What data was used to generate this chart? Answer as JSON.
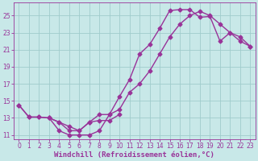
{
  "xlabel": "Windchill (Refroidissement éolien,°C)",
  "bg_color": "#c8e8e8",
  "grid_color": "#a0cccc",
  "line_color": "#993399",
  "xlim": [
    -0.5,
    23.5
  ],
  "ylim": [
    10.5,
    26.5
  ],
  "yticks": [
    11,
    13,
    15,
    17,
    19,
    21,
    23,
    25
  ],
  "xticks": [
    0,
    1,
    2,
    3,
    4,
    5,
    6,
    7,
    8,
    9,
    10,
    11,
    12,
    13,
    14,
    15,
    16,
    17,
    18,
    19,
    20,
    21,
    22,
    23
  ],
  "line1_x": [
    0,
    1,
    2,
    3,
    4,
    5,
    6,
    7,
    8,
    9,
    10,
    11,
    12,
    13,
    14,
    15,
    16,
    17,
    18,
    19,
    20,
    21,
    22,
    23
  ],
  "line1_y": [
    14.5,
    13.1,
    13.1,
    13.0,
    11.5,
    11.0,
    11.0,
    11.0,
    11.5,
    13.4,
    15.5,
    17.5,
    20.5,
    21.6,
    23.5,
    25.6,
    25.7,
    25.7,
    24.8,
    24.9,
    22.0,
    23.0,
    22.0,
    21.4
  ],
  "line2_x": [
    0,
    1,
    2,
    3,
    4,
    5,
    6,
    7,
    8,
    9,
    10,
    11,
    12,
    13,
    14,
    15,
    16,
    17,
    18,
    19,
    20,
    21,
    22,
    23
  ],
  "line2_y": [
    14.5,
    13.1,
    13.1,
    13.0,
    12.5,
    12.0,
    11.5,
    12.5,
    13.4,
    13.4,
    14.0,
    16.0,
    17.0,
    18.5,
    20.5,
    22.5,
    24.0,
    25.0,
    25.5,
    25.0,
    24.0,
    23.0,
    22.5,
    21.4
  ],
  "line3_x": [
    3,
    4,
    5,
    6,
    7,
    8,
    9,
    10
  ],
  "line3_y": [
    13.0,
    12.5,
    11.5,
    11.5,
    12.5,
    12.7,
    12.7,
    13.4
  ],
  "marker": "D",
  "markersize": 2.5,
  "linewidth": 1.0,
  "tick_fontsize": 5.5,
  "xlabel_fontsize": 6.5
}
